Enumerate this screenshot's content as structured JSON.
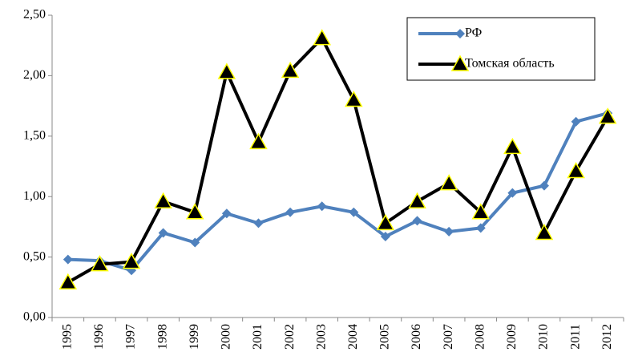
{
  "chart_data": {
    "type": "line",
    "categories": [
      "1995",
      "1996",
      "1997",
      "1998",
      "1999",
      "2000",
      "2001",
      "2002",
      "2003",
      "2004",
      "2005",
      "2006",
      "2007",
      "2008",
      "2009",
      "2010",
      "2011",
      "2012"
    ],
    "series": [
      {
        "name": "РФ",
        "color": "#4f81bd",
        "marker": "diamond",
        "values": [
          0.48,
          0.47,
          0.39,
          0.7,
          0.62,
          0.86,
          0.78,
          0.87,
          0.92,
          0.87,
          0.67,
          0.8,
          0.71,
          0.74,
          1.03,
          1.09,
          1.62,
          1.69
        ]
      },
      {
        "name": "Томская область",
        "color": "#000000",
        "marker": "triangle",
        "values": [
          0.29,
          0.44,
          0.46,
          0.96,
          0.87,
          2.03,
          1.45,
          2.04,
          2.31,
          1.8,
          0.78,
          0.96,
          1.11,
          0.87,
          1.41,
          0.7,
          1.21,
          1.66
        ]
      }
    ],
    "ylim": [
      0,
      2.5
    ],
    "yticks": [
      {
        "value": 0,
        "label": "0,00"
      },
      {
        "value": 0.5,
        "label": "0,50"
      },
      {
        "value": 1,
        "label": "1,00"
      },
      {
        "value": 1.5,
        "label": "1,50"
      },
      {
        "value": 2,
        "label": "2,00"
      },
      {
        "value": 2.5,
        "label": "2,50"
      }
    ],
    "grid": false,
    "legend": "upper right"
  }
}
